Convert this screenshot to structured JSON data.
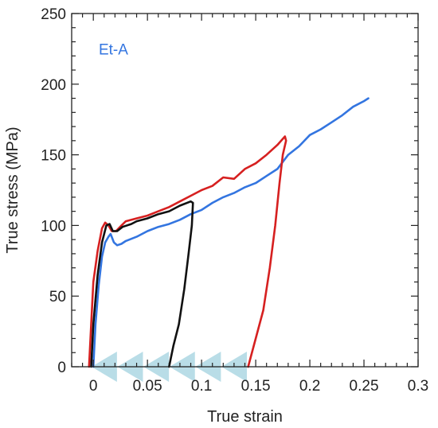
{
  "chart_data": {
    "type": "line",
    "xlabel": "True strain",
    "ylabel": "True stress (MPa)",
    "xlim": [
      -0.02,
      0.3
    ],
    "ylim": [
      0,
      250
    ],
    "xticks": [
      0,
      0.05,
      0.1,
      0.15,
      0.2,
      0.25,
      0.3
    ],
    "xtick_labels": [
      "0",
      "0.05",
      "0.1",
      "0.15",
      "0.2",
      "0.25",
      "0.3"
    ],
    "yticks": [
      0,
      50,
      100,
      150,
      200,
      250
    ],
    "ytick_labels": [
      "0",
      "50",
      "100",
      "150",
      "200",
      "250"
    ],
    "grid": false,
    "annotation": {
      "text": "Et-A",
      "x": 0.005,
      "y": 225,
      "color": "#3375e0"
    },
    "series": [
      {
        "color": "#3375e0",
        "points": [
          [
            0.0,
            0
          ],
          [
            0.002,
            30
          ],
          [
            0.005,
            58
          ],
          [
            0.008,
            78
          ],
          [
            0.011,
            88
          ],
          [
            0.014,
            92
          ],
          [
            0.016,
            94
          ],
          [
            0.019,
            88
          ],
          [
            0.022,
            86
          ],
          [
            0.026,
            87
          ],
          [
            0.03,
            89
          ],
          [
            0.04,
            92
          ],
          [
            0.05,
            96
          ],
          [
            0.06,
            99
          ],
          [
            0.07,
            101
          ],
          [
            0.08,
            104
          ],
          [
            0.09,
            108
          ],
          [
            0.1,
            111
          ],
          [
            0.11,
            116
          ],
          [
            0.12,
            120
          ],
          [
            0.13,
            123
          ],
          [
            0.14,
            127
          ],
          [
            0.15,
            130
          ],
          [
            0.16,
            135
          ],
          [
            0.17,
            140
          ],
          [
            0.18,
            150
          ],
          [
            0.19,
            156
          ],
          [
            0.2,
            164
          ],
          [
            0.21,
            168
          ],
          [
            0.22,
            173
          ],
          [
            0.23,
            178
          ],
          [
            0.24,
            184
          ],
          [
            0.25,
            188
          ],
          [
            0.254,
            190
          ]
        ]
      },
      {
        "color": "#d62020",
        "points": [
          [
            -0.004,
            0
          ],
          [
            -0.002,
            30
          ],
          [
            0.0,
            60
          ],
          [
            0.004,
            82
          ],
          [
            0.008,
            98
          ],
          [
            0.011,
            102
          ],
          [
            0.014,
            100
          ],
          [
            0.017,
            96
          ],
          [
            0.021,
            96
          ],
          [
            0.026,
            100
          ],
          [
            0.03,
            103
          ],
          [
            0.04,
            105
          ],
          [
            0.05,
            107
          ],
          [
            0.06,
            110
          ],
          [
            0.07,
            113
          ],
          [
            0.08,
            117
          ],
          [
            0.09,
            121
          ],
          [
            0.1,
            125
          ],
          [
            0.11,
            128
          ],
          [
            0.12,
            134
          ],
          [
            0.13,
            133
          ],
          [
            0.14,
            140
          ],
          [
            0.15,
            144
          ],
          [
            0.16,
            150
          ],
          [
            0.17,
            157
          ],
          [
            0.177,
            163
          ],
          [
            0.178,
            160
          ],
          [
            0.175,
            150
          ],
          [
            0.172,
            130
          ],
          [
            0.168,
            100
          ],
          [
            0.163,
            70
          ],
          [
            0.157,
            40
          ],
          [
            0.15,
            20
          ],
          [
            0.143,
            0
          ]
        ]
      },
      {
        "color": "#111111",
        "points": [
          [
            -0.002,
            0
          ],
          [
            0.0,
            30
          ],
          [
            0.004,
            65
          ],
          [
            0.008,
            88
          ],
          [
            0.012,
            100
          ],
          [
            0.015,
            101
          ],
          [
            0.018,
            96
          ],
          [
            0.022,
            96
          ],
          [
            0.027,
            99
          ],
          [
            0.035,
            101
          ],
          [
            0.04,
            103
          ],
          [
            0.05,
            105
          ],
          [
            0.06,
            108
          ],
          [
            0.07,
            110
          ],
          [
            0.08,
            114
          ],
          [
            0.09,
            117
          ],
          [
            0.092,
            116
          ],
          [
            0.091,
            100
          ],
          [
            0.088,
            80
          ],
          [
            0.084,
            55
          ],
          [
            0.079,
            30
          ],
          [
            0.074,
            15
          ],
          [
            0.07,
            0
          ]
        ]
      }
    ],
    "markers": {
      "shape": "triangle-left",
      "color": "#b9dde7",
      "y": 0,
      "x": [
        0.013,
        0.037,
        0.061,
        0.085,
        0.109,
        0.133
      ]
    }
  }
}
